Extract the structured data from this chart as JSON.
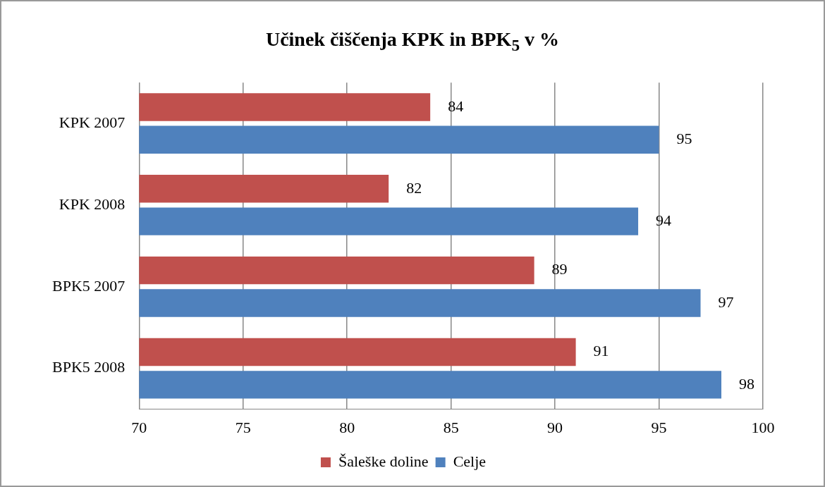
{
  "chart_data": {
    "type": "bar",
    "orientation": "horizontal",
    "title": "Učinek čiščenja KPK in BPK$_{5}$ v %",
    "categories": [
      "KPK 2007",
      "KPK 2008",
      "BPK5 2007",
      "BPK5 2008"
    ],
    "series": [
      {
        "name": "Šaleške doline",
        "color": "#c0504d",
        "values": [
          84,
          82,
          89,
          91
        ]
      },
      {
        "name": "Celje",
        "color": "#4f81bd",
        "values": [
          95,
          94,
          97,
          98
        ]
      }
    ],
    "xlim": [
      70,
      100
    ],
    "xticks": [
      70,
      75,
      80,
      85,
      90,
      95,
      100
    ],
    "grid": "x",
    "legend": "bottom",
    "data_labels": true
  }
}
